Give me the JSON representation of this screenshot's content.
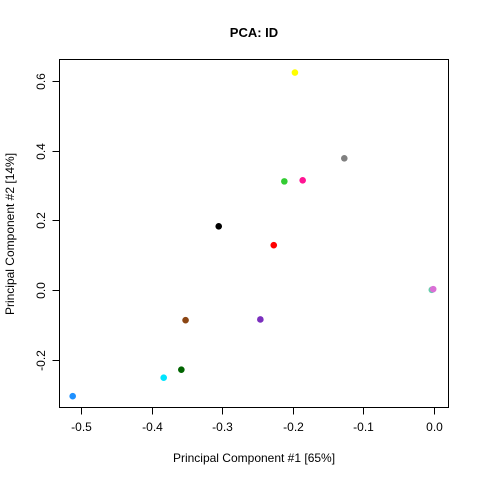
{
  "chart_data": {
    "type": "scatter",
    "title": "PCA: ID",
    "xlabel": "Principal Component #1 [65%]",
    "ylabel": "Principal Component #2 [14%]",
    "xlim": [
      -0.53,
      0.02
    ],
    "ylim": [
      -0.335,
      0.66
    ],
    "x_ticks": [
      -0.5,
      -0.4,
      -0.3,
      -0.2,
      -0.1,
      0.0
    ],
    "x_tick_labels": [
      "-0.5",
      "-0.4",
      "-0.3",
      "-0.2",
      "-0.1",
      "0.0"
    ],
    "y_ticks": [
      -0.2,
      0.0,
      0.2,
      0.4,
      0.6
    ],
    "y_tick_labels": [
      "-0.2",
      "0.0",
      "0.2",
      "0.4",
      "0.6"
    ],
    "grid": false,
    "legend": "none",
    "points": [
      {
        "x": -0.197,
        "y": 0.624,
        "color": "#ffff00"
      },
      {
        "x": -0.127,
        "y": 0.378,
        "color": "#808080"
      },
      {
        "x": -0.212,
        "y": 0.312,
        "color": "#33cc33"
      },
      {
        "x": -0.186,
        "y": 0.315,
        "color": "#ff1493"
      },
      {
        "x": -0.305,
        "y": 0.183,
        "color": "#000000"
      },
      {
        "x": -0.227,
        "y": 0.129,
        "color": "#ff0000"
      },
      {
        "x": -0.003,
        "y": 0.001,
        "color": "#66cdaa"
      },
      {
        "x": -0.001,
        "y": 0.003,
        "color": "#da70d6"
      },
      {
        "x": -0.352,
        "y": -0.086,
        "color": "#8b4513"
      },
      {
        "x": -0.246,
        "y": -0.084,
        "color": "#7b2fbe"
      },
      {
        "x": -0.358,
        "y": -0.228,
        "color": "#006400"
      },
      {
        "x": -0.383,
        "y": -0.251,
        "color": "#00e5ff"
      },
      {
        "x": -0.512,
        "y": -0.304,
        "color": "#1e90ff"
      }
    ]
  }
}
